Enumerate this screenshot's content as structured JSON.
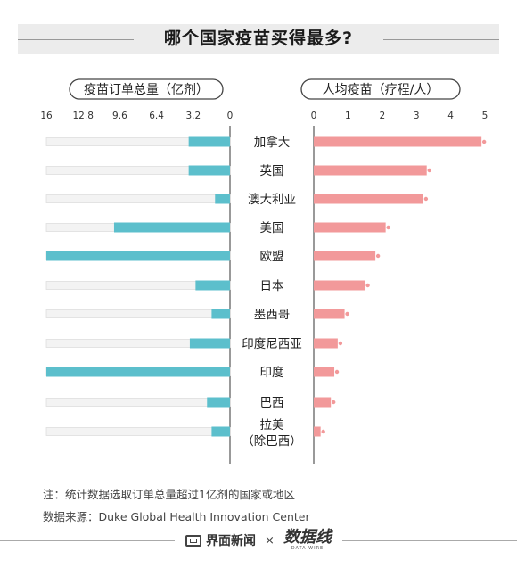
{
  "title": "哪个国家疫苗买得最多?",
  "left_panel": {
    "label": "疫苗订单总量（亿剂）"
  },
  "right_panel": {
    "label": "人均疫苗（疗程/人）"
  },
  "note": "注：统计数据选取订单总量超过1亿剂的国家或地区",
  "source": "数据来源：Duke Global Health Innovation Center",
  "footer": {
    "brand1": "界面新闻",
    "times": "×",
    "brand2": "数据线",
    "brand2_sub": "DATA WIRE"
  },
  "chart_data": [
    {
      "type": "bar",
      "title": "疫苗订单总量（亿剂）",
      "orientation": "horizontal",
      "x_reversed": true,
      "xlim": [
        0,
        16
      ],
      "ticks": [
        "16",
        "12.8",
        "9.6",
        "6.4",
        "3.2",
        "0"
      ],
      "tick_values": [
        16,
        12.8,
        9.6,
        6.4,
        3.2,
        0
      ],
      "color": "#5cbfcc",
      "categories": [
        "加拿大",
        "英国",
        "澳大利亚",
        "美国",
        "欧盟",
        "日本",
        "墨西哥",
        "印度尼西亚",
        "印度",
        "巴西",
        "拉美（除巴西）"
      ],
      "values": [
        3.6,
        3.6,
        1.3,
        10.1,
        16.0,
        3.0,
        1.6,
        3.5,
        16.0,
        2.0,
        1.6
      ]
    },
    {
      "type": "bar",
      "title": "人均疫苗（疗程/人）",
      "orientation": "horizontal",
      "xlim": [
        0,
        5
      ],
      "ticks": [
        "0",
        "1",
        "2",
        "3",
        "4",
        "5"
      ],
      "tick_values": [
        0,
        1,
        2,
        3,
        4,
        5
      ],
      "color": "#f2999a",
      "categories": [
        "加拿大",
        "英国",
        "澳大利亚",
        "美国",
        "欧盟",
        "日本",
        "墨西哥",
        "印度尼西亚",
        "印度",
        "巴西",
        "拉美（除巴西）"
      ],
      "values": [
        4.9,
        3.3,
        3.2,
        2.1,
        1.8,
        1.5,
        0.9,
        0.7,
        0.6,
        0.5,
        0.2
      ]
    }
  ],
  "category_labels": [
    [
      "加拿大"
    ],
    [
      "英国"
    ],
    [
      "澳大利亚"
    ],
    [
      "美国"
    ],
    [
      "欧盟"
    ],
    [
      "日本"
    ],
    [
      "墨西哥"
    ],
    [
      "印度尼西亚"
    ],
    [
      "印度"
    ],
    [
      "巴西"
    ],
    [
      "拉美",
      "（除巴西）"
    ]
  ]
}
